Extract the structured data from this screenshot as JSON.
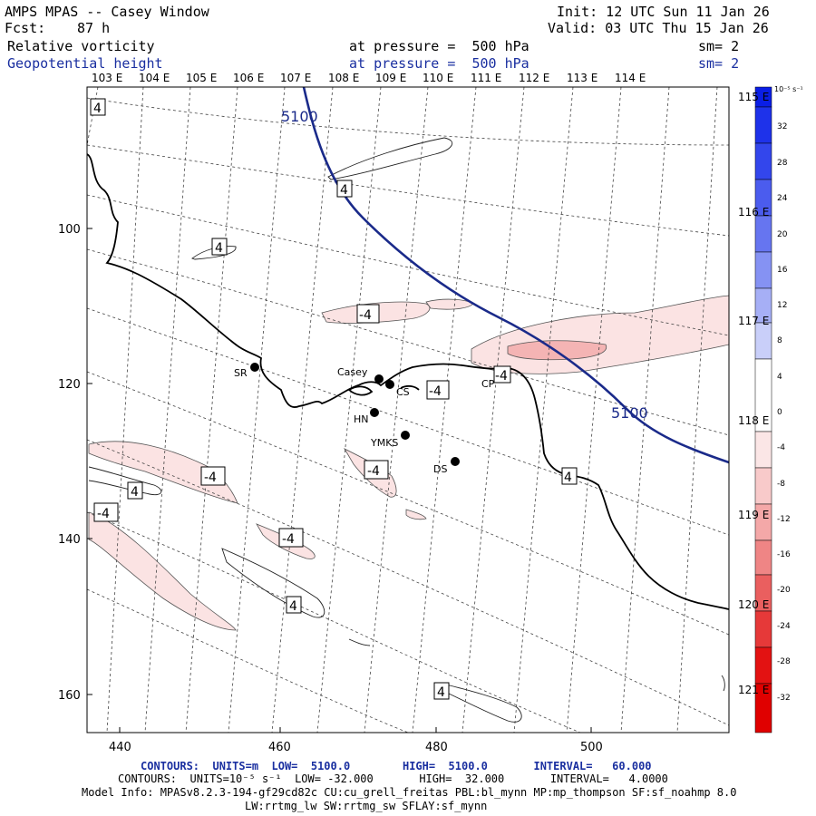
{
  "header": {
    "title": "AMPS MPAS -- Casey Window",
    "fcst_label": "Fcst:",
    "fcst_value": "87 h",
    "init": "Init: 12 UTC Sun 11 Jan 26",
    "valid": "Valid: 03 UTC Thu 15 Jan 26",
    "field1_name": "Relative vorticity",
    "field1_level": "at pressure =  500 hPa",
    "field1_sm": "sm= 2",
    "field2_name": "Geopotential height",
    "field2_level": "at pressure =  500 hPa",
    "field2_sm": "sm= 2"
  },
  "top_lon_labels": [
    "103 E",
    "104 E",
    "105 E",
    "106 E",
    "107 E",
    "108 E",
    "109 E",
    "110 E",
    "111 E",
    "112 E",
    "113 E",
    "114 E"
  ],
  "right_lon_labels": [
    "115 E",
    "116 E",
    "117 E",
    "118 E",
    "119 E",
    "120 E",
    "121 E"
  ],
  "x_ticks": [
    "440",
    "460",
    "480",
    "500"
  ],
  "y_ticks": [
    "100",
    "120",
    "140",
    "160"
  ],
  "stations": [
    {
      "name": "SR"
    },
    {
      "name": "Casey"
    },
    {
      "name": "CS"
    },
    {
      "name": "HN"
    },
    {
      "name": "YMKS"
    },
    {
      "name": "DS"
    },
    {
      "name": "CP"
    }
  ],
  "contour_labels": {
    "height": "5100",
    "vort_pos": "4",
    "vort_neg": "-4"
  },
  "colorbar": {
    "unit": "10⁻⁵ s⁻¹",
    "labels": [
      "32",
      "28",
      "24",
      "20",
      "16",
      "12",
      "8",
      "4",
      "0",
      "-4",
      "-8",
      "-12",
      "-16",
      "-20",
      "-24",
      "-28",
      "-32"
    ],
    "colors": [
      "#0a1ee6",
      "#1e32ea",
      "#3346ec",
      "#4b5cee",
      "#6675f0",
      "#8592f3",
      "#a6aff6",
      "#c9cff9",
      "#ffffff",
      "#ffffff",
      "#fbe6e6",
      "#f8caca",
      "#f4a8a8",
      "#ef8585",
      "#ea5f5f",
      "#e63939",
      "#e31212",
      "#e00000"
    ]
  },
  "footer": {
    "line1": "CONTOURS:  UNITS=m  LOW=  5100.0        HIGH=  5100.0       INTERVAL=   60.000",
    "line2": "CONTOURS:  UNITS=10⁻⁵ s⁻¹  LOW= -32.000       HIGH=  32.000       INTERVAL=   4.0000",
    "line3": "Model Info: MPASv8.2.3-194-gf29cd82c CU:cu_grell_freitas PBL:bl_mynn MP:mp_thompson SF:sf_noahmp 8.0",
    "line4": "LW:rrtmg_lw SW:rrtmg_sw SFLAY:sf_mynn"
  }
}
